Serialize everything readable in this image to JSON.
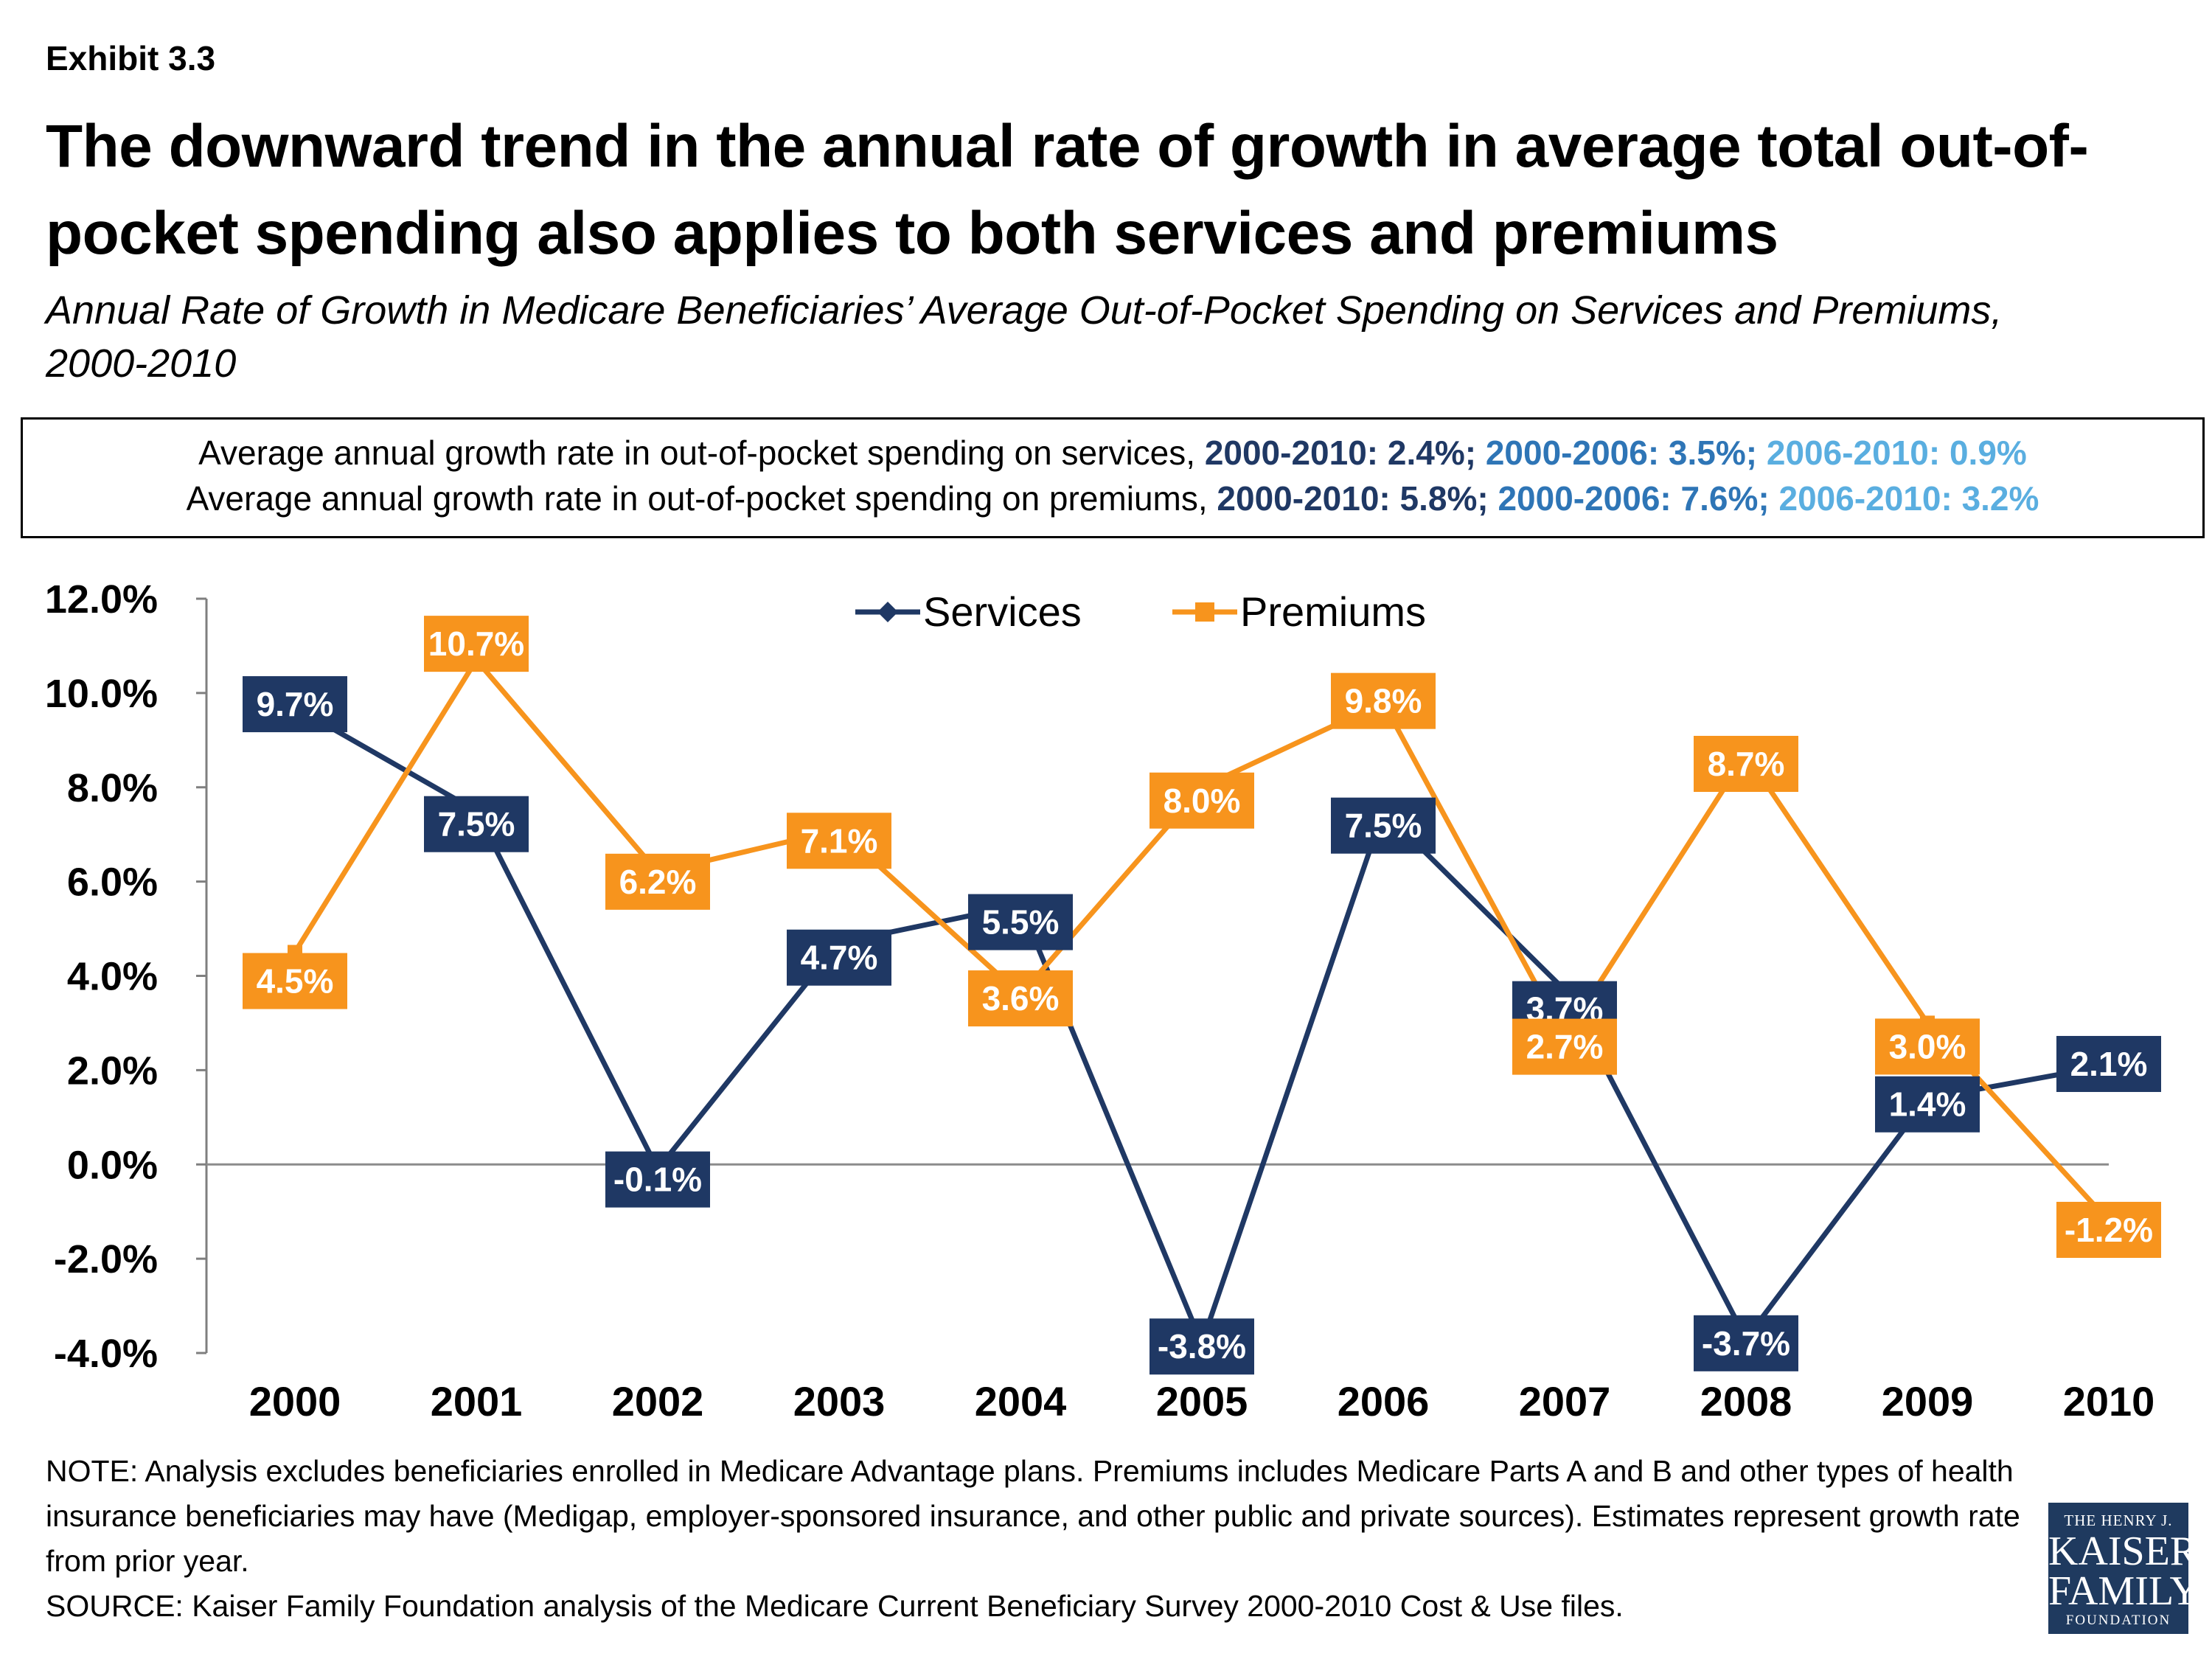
{
  "header": {
    "exhibit": "Exhibit 3.3",
    "title": "The downward trend in the annual rate of growth in average total out-of-pocket spending also applies to both services and premiums",
    "subtitle": "Annual Rate of Growth in Medicare Beneficiaries’ Average Out-of-Pocket Spending on Services and Premiums, 2000-2010"
  },
  "summary": {
    "services": {
      "text": "Average annual growth rate in out-of-pocket spending on services, ",
      "p1": "2000-2010: 2.4%;",
      "p2": "2000-2006: 3.5%;",
      "p3": "2006-2010: 0.9%"
    },
    "premiums": {
      "text": "Average annual growth rate in out-of-pocket spending on premiums, ",
      "p1": "2000-2010: 5.8%;",
      "p2": "2000-2006: 7.6%;",
      "p3": "2006-2010: 3.2%"
    }
  },
  "chart_data": {
    "type": "line",
    "x": [
      "2000",
      "2001",
      "2002",
      "2003",
      "2004",
      "2005",
      "2006",
      "2007",
      "2008",
      "2009",
      "2010"
    ],
    "ylim": [
      -4.0,
      12.0
    ],
    "yticks": [
      12.0,
      10.0,
      8.0,
      6.0,
      4.0,
      2.0,
      0.0,
      -2.0,
      -4.0
    ],
    "ytick_labels": [
      "12.0%",
      "10.0%",
      "8.0%",
      "6.0%",
      "4.0%",
      "2.0%",
      "0.0%",
      "-2.0%",
      "-4.0%"
    ],
    "legend_position": "top-center",
    "series": [
      {
        "name": "Services",
        "color": "#1f3864",
        "marker": "diamond",
        "values": [
          9.7,
          7.5,
          -0.1,
          4.7,
          5.5,
          -3.8,
          7.5,
          3.7,
          -3.7,
          1.4,
          2.1
        ],
        "labels": [
          "9.7%",
          "7.5%",
          "-0.1%",
          "4.7%",
          "5.5%",
          "-3.8%",
          "7.5%",
          "3.7%",
          "-3.7%",
          "1.4%",
          "2.1%"
        ]
      },
      {
        "name": "Premiums",
        "color": "#f7941d",
        "marker": "square",
        "values": [
          4.5,
          10.7,
          6.2,
          7.1,
          3.6,
          8.0,
          9.8,
          2.7,
          8.7,
          3.0,
          -1.2
        ],
        "labels": [
          "4.5%",
          "10.7%",
          "6.2%",
          "7.1%",
          "3.6%",
          "8.0%",
          "9.8%",
          "2.7%",
          "8.7%",
          "3.0%",
          "-1.2%"
        ]
      }
    ]
  },
  "notes": {
    "note": "NOTE: Analysis excludes beneficiaries enrolled in Medicare Advantage plans. Premiums includes Medicare Parts A and B and other types of health insurance beneficiaries may have (Medigap, employer-sponsored insurance, and other public and private sources). Estimates represent growth rate from prior year.",
    "source": "SOURCE: Kaiser Family Foundation analysis of the Medicare Current Beneficiary Survey 2000-2010 Cost & Use files."
  },
  "logo": {
    "line1": "THE HENRY J.",
    "line2": "KAISER",
    "line3": "FAMILY",
    "line4": "FOUNDATION"
  }
}
